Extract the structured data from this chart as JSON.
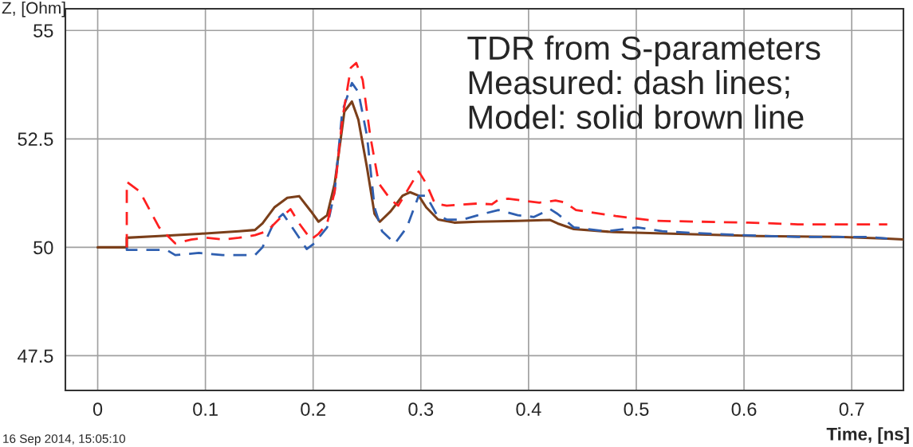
{
  "chart_data": {
    "type": "line",
    "ylabel": "Z, [Ohm]",
    "xlabel": "Time, [ns]",
    "xlim": [
      -0.03,
      0.748
    ],
    "ylim": [
      46.7,
      55.5
    ],
    "xticks": [
      0,
      0.1,
      0.2,
      0.3,
      0.4,
      0.5,
      0.6,
      0.7
    ],
    "yticks": [
      47.5,
      50,
      52.5,
      55
    ],
    "grid": true,
    "series": [
      {
        "color": "#ff2020",
        "line_style": "dashed",
        "x": [
          0.027,
          0.027,
          0.039,
          0.057,
          0.072,
          0.087,
          0.101,
          0.116,
          0.131,
          0.146,
          0.157,
          0.168,
          0.179,
          0.187,
          0.198,
          0.205,
          0.213,
          0.22,
          0.227,
          0.235,
          0.24,
          0.246,
          0.253,
          0.261,
          0.272,
          0.279,
          0.287,
          0.298,
          0.305,
          0.313,
          0.324,
          0.353,
          0.366,
          0.372,
          0.381,
          0.41,
          0.425,
          0.434,
          0.444,
          0.481,
          0.518,
          0.604,
          0.65,
          0.733
        ],
        "values": [
          50,
          51.51,
          51.29,
          50.46,
          50.09,
          50.18,
          50.22,
          50.18,
          50.22,
          50.28,
          50.37,
          50.64,
          50.88,
          50.55,
          50.18,
          50.31,
          50.55,
          51.29,
          52.94,
          54.14,
          54.25,
          53.86,
          52.57,
          51.47,
          51.1,
          50.96,
          51.29,
          51.75,
          51.47,
          51.01,
          50.96,
          51.01,
          50.99,
          51.1,
          51.12,
          51.03,
          51.08,
          51.03,
          50.86,
          50.72,
          50.61,
          50.57,
          50.53,
          50.53
        ]
      },
      {
        "color": "#2f5fb0",
        "line_style": "dashed",
        "x": [
          0.027,
          0.027,
          0.064,
          0.072,
          0.094,
          0.116,
          0.146,
          0.153,
          0.164,
          0.172,
          0.183,
          0.194,
          0.201,
          0.213,
          0.22,
          0.227,
          0.236,
          0.242,
          0.25,
          0.257,
          0.264,
          0.276,
          0.287,
          0.298,
          0.305,
          0.315,
          0.324,
          0.339,
          0.353,
          0.372,
          0.39,
          0.405,
          0.42,
          0.427,
          0.442,
          0.472,
          0.501,
          0.524,
          0.553,
          0.598,
          0.65,
          0.716,
          0.733
        ],
        "values": [
          50,
          49.94,
          49.94,
          49.82,
          49.87,
          49.82,
          49.82,
          50,
          50.59,
          50.77,
          50.37,
          49.96,
          50.09,
          50.46,
          51.29,
          53.13,
          53.79,
          53.58,
          52.57,
          50.92,
          50.37,
          50.09,
          50.46,
          51.19,
          51.19,
          50.74,
          50.64,
          50.64,
          50.74,
          50.86,
          50.74,
          50.7,
          50.88,
          50.77,
          50.46,
          50.37,
          50.46,
          50.37,
          50.33,
          50.28,
          50.24,
          50.24,
          50.2
        ]
      },
      {
        "color": "#7b3f1a",
        "line_style": "solid",
        "x": [
          0,
          0.027,
          0.027,
          0.057,
          0.094,
          0.131,
          0.146,
          0.153,
          0.164,
          0.176,
          0.187,
          0.198,
          0.205,
          0.213,
          0.22,
          0.229,
          0.236,
          0.242,
          0.25,
          0.257,
          0.262,
          0.272,
          0.283,
          0.29,
          0.298,
          0.305,
          0.316,
          0.331,
          0.353,
          0.39,
          0.42,
          0.427,
          0.442,
          0.479,
          0.539,
          0.613,
          0.687,
          0.733,
          0.748
        ],
        "values": [
          50,
          50,
          50.22,
          50.26,
          50.31,
          50.37,
          50.4,
          50.55,
          50.92,
          51.14,
          51.18,
          50.83,
          50.59,
          50.74,
          51.47,
          53.13,
          53.36,
          52.94,
          51.84,
          50.77,
          50.59,
          50.83,
          51.19,
          51.27,
          51.19,
          50.92,
          50.64,
          50.57,
          50.59,
          50.61,
          50.63,
          50.55,
          50.42,
          50.35,
          50.31,
          50.26,
          50.24,
          50.2,
          50.18
        ]
      }
    ],
    "annotations": [
      "TDR from S-parameters\nMeasured: dash lines;\nModel: solid brown line",
      "16 Sep 2014, 15:05:10"
    ]
  }
}
